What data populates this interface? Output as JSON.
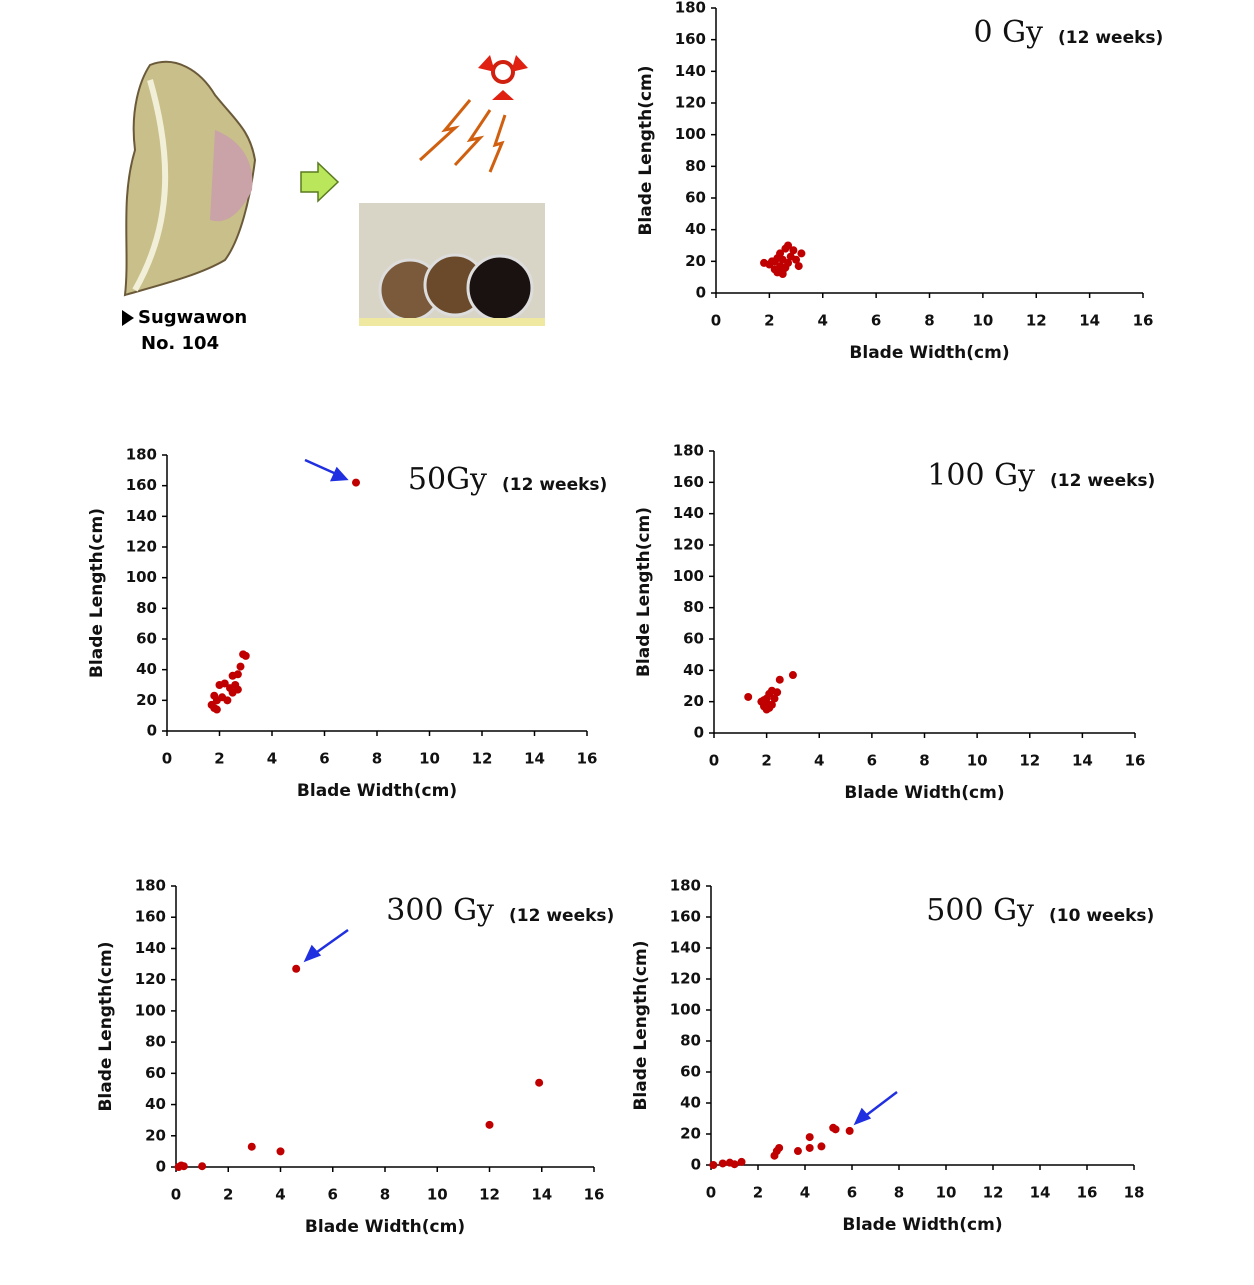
{
  "illustration": {
    "label": [
      "Sugwawon",
      "No. 104"
    ]
  },
  "chart_data": [
    {
      "type": "scatter",
      "title": "0 Gy",
      "subtitle": "(12 weeks)",
      "x_label": "Blade Width(cm)",
      "y_label": "Blade Length(cm)",
      "color": "#c00000",
      "x": [
        1.8,
        2.0,
        2.1,
        2.2,
        2.3,
        2.3,
        2.4,
        2.4,
        2.5,
        2.5,
        2.6,
        2.6,
        2.7,
        2.7,
        2.8,
        2.9,
        3.0,
        3.1,
        3.2,
        2.2,
        2.5
      ],
      "y": [
        19,
        18,
        20,
        15,
        22,
        13,
        17,
        25,
        12,
        21,
        28,
        16,
        30,
        19,
        23,
        27,
        21,
        17,
        25,
        20,
        14
      ],
      "xlim": [
        0,
        16
      ],
      "ylim": [
        0,
        180
      ],
      "xticks": [
        0,
        2,
        4,
        6,
        8,
        10,
        12,
        14,
        16
      ],
      "yticks": [
        0,
        20,
        40,
        60,
        80,
        100,
        120,
        140,
        160,
        180
      ]
    },
    {
      "type": "scatter",
      "title": "50Gy",
      "subtitle": "(12 weeks)",
      "x_label": "Blade Width(cm)",
      "y_label": "Blade Length(cm)",
      "color": "#c00000",
      "x": [
        7.2,
        1.7,
        1.8,
        1.9,
        1.8,
        2.0,
        2.1,
        2.2,
        2.3,
        2.4,
        2.5,
        2.5,
        2.6,
        2.7,
        2.8,
        2.9,
        3.0,
        2.7,
        1.9
      ],
      "y": [
        162,
        17,
        15,
        20,
        23,
        30,
        22,
        31,
        20,
        28,
        25,
        36,
        30,
        27,
        42,
        50,
        49,
        37,
        14
      ],
      "xlim": [
        0,
        16
      ],
      "ylim": [
        0,
        180
      ],
      "xticks": [
        0,
        2,
        4,
        6,
        8,
        10,
        12,
        14,
        16
      ],
      "yticks": [
        0,
        20,
        40,
        60,
        80,
        100,
        120,
        140,
        160,
        180
      ]
    },
    {
      "type": "scatter",
      "title": "100 Gy",
      "subtitle": "(12 weeks)",
      "x_label": "Blade Width(cm)",
      "y_label": "Blade Length(cm)",
      "color": "#c00000",
      "x": [
        1.3,
        1.8,
        1.9,
        2.0,
        2.0,
        2.1,
        2.2,
        2.2,
        2.3,
        2.4,
        2.0,
        1.9,
        2.5,
        3.0,
        2.1
      ],
      "y": [
        23,
        20,
        17,
        15,
        22,
        25,
        18,
        27,
        22,
        26,
        19,
        21,
        34,
        37,
        16
      ],
      "xlim": [
        0,
        16
      ],
      "ylim": [
        0,
        180
      ],
      "xticks": [
        0,
        2,
        4,
        6,
        8,
        10,
        12,
        14,
        16
      ],
      "yticks": [
        0,
        20,
        40,
        60,
        80,
        100,
        120,
        140,
        160,
        180
      ]
    },
    {
      "type": "scatter",
      "title": "300 Gy",
      "subtitle": "(12 weeks)",
      "x_label": "Blade Width(cm)",
      "y_label": "Blade Length(cm)",
      "color": "#c00000",
      "x": [
        0.1,
        0.2,
        0.3,
        1.0,
        2.9,
        4.0,
        4.6,
        12.0,
        13.9
      ],
      "y": [
        0,
        1,
        0.5,
        0.5,
        13,
        10,
        127,
        27,
        54
      ],
      "xlim": [
        0,
        16
      ],
      "ylim": [
        0,
        180
      ],
      "xticks": [
        0,
        2,
        4,
        6,
        8,
        10,
        12,
        14,
        16
      ],
      "yticks": [
        0,
        20,
        40,
        60,
        80,
        100,
        120,
        140,
        160,
        180
      ]
    },
    {
      "type": "scatter",
      "title": "500 Gy",
      "subtitle": "(10 weeks)",
      "x_label": "Blade Width(cm)",
      "y_label": "Blade Length(cm)",
      "color": "#c00000",
      "x": [
        0.1,
        0.5,
        0.8,
        1.0,
        1.3,
        2.7,
        2.8,
        2.9,
        3.7,
        4.2,
        4.2,
        4.7,
        5.2,
        5.3,
        5.9
      ],
      "y": [
        0,
        1,
        1.5,
        0.5,
        2,
        6,
        9,
        11,
        9,
        11,
        18,
        12,
        24,
        23,
        22
      ],
      "xlim": [
        0,
        18
      ],
      "ylim": [
        0,
        180
      ],
      "xticks": [
        0,
        2,
        4,
        6,
        8,
        10,
        12,
        14,
        16,
        18
      ],
      "yticks": [
        0,
        20,
        40,
        60,
        80,
        100,
        120,
        140,
        160,
        180
      ]
    }
  ]
}
